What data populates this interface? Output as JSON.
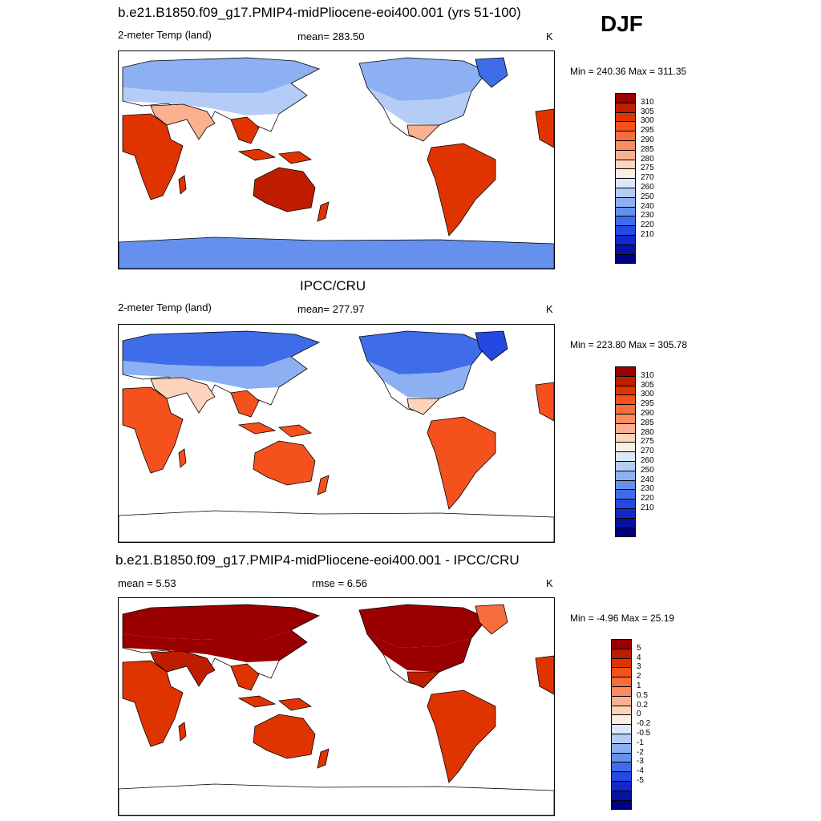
{
  "season": "DJF",
  "panels": [
    {
      "title": "b.e21.B1850.f09_g17.PMIP4-midPliocene-eoi400.001 (yrs 51-100)",
      "left": "2-meter Temp (land)",
      "mid": "mean= 283.50",
      "units": "K",
      "minmax": "Min = 240.36 Max = 311.35",
      "kind": "model",
      "colorbar": "temp"
    },
    {
      "title": "IPCC/CRU",
      "left": "2-meter Temp (land)",
      "mid": "mean= 277.97",
      "units": "K",
      "minmax": "Min = 223.80 Max = 305.78",
      "kind": "obs",
      "colorbar": "temp"
    },
    {
      "title": "b.e21.B1850.f09_g17.PMIP4-midPliocene-eoi400.001 - IPCC/CRU",
      "left": "mean =   5.53",
      "mid": "rmse =   6.56",
      "units": "K",
      "minmax": "Min =  -4.96 Max =  25.19",
      "kind": "diff",
      "colorbar": "diff"
    }
  ],
  "colorbars": {
    "temp": {
      "colors": [
        "#9a0000",
        "#c01d00",
        "#e03400",
        "#f4511c",
        "#f86d3c",
        "#fa8c60",
        "#fbb090",
        "#fdd3bc",
        "#fdeee2",
        "#dce8fa",
        "#b5cdf6",
        "#8cb0f2",
        "#6690ee",
        "#3f6de9",
        "#2449e0",
        "#1228c8",
        "#0612a0",
        "#000080"
      ],
      "labels": [
        "310",
        "305",
        "300",
        "295",
        "290",
        "285",
        "280",
        "275",
        "270",
        "260",
        "250",
        "240",
        "230",
        "220",
        "210"
      ]
    },
    "diff": {
      "colors": [
        "#9a0000",
        "#c01d00",
        "#e03400",
        "#f4511c",
        "#f86d3c",
        "#fa8c60",
        "#fbb090",
        "#fdd3bc",
        "#fdeee2",
        "#dce8fa",
        "#b5cdf6",
        "#8cb0f2",
        "#6690ee",
        "#3f6de9",
        "#2449e0",
        "#1228c8",
        "#0612a0",
        "#000080"
      ],
      "labels": [
        "5",
        "4",
        "3",
        "2",
        "1",
        "0.5",
        "0.2",
        "0",
        "-0.2",
        "-0.5",
        "-1",
        "-2",
        "-3",
        "-4",
        "-5"
      ]
    }
  },
  "map_colors": {
    "model": {
      "nh_high": "#8cb0f2",
      "nh_mid": "#b5cdf6",
      "nh_sub": "#fbb090",
      "trop": "#e03400",
      "aus": "#c01d00",
      "antarctic": "#6690ee",
      "greenland": "#3f6de9"
    },
    "obs": {
      "nh_high": "#3f6de9",
      "nh_mid": "#8cb0f2",
      "nh_sub": "#fdd3bc",
      "trop": "#f4511c",
      "aus": "#f4511c",
      "antarctic": "#ffffff",
      "greenland": "#2449e0"
    },
    "diff": {
      "nh_high": "#9a0000",
      "nh_mid": "#9a0000",
      "nh_sub": "#c01d00",
      "trop": "#e03400",
      "aus": "#e03400",
      "antarctic": "#ffffff",
      "greenland": "#f86d3c"
    }
  }
}
